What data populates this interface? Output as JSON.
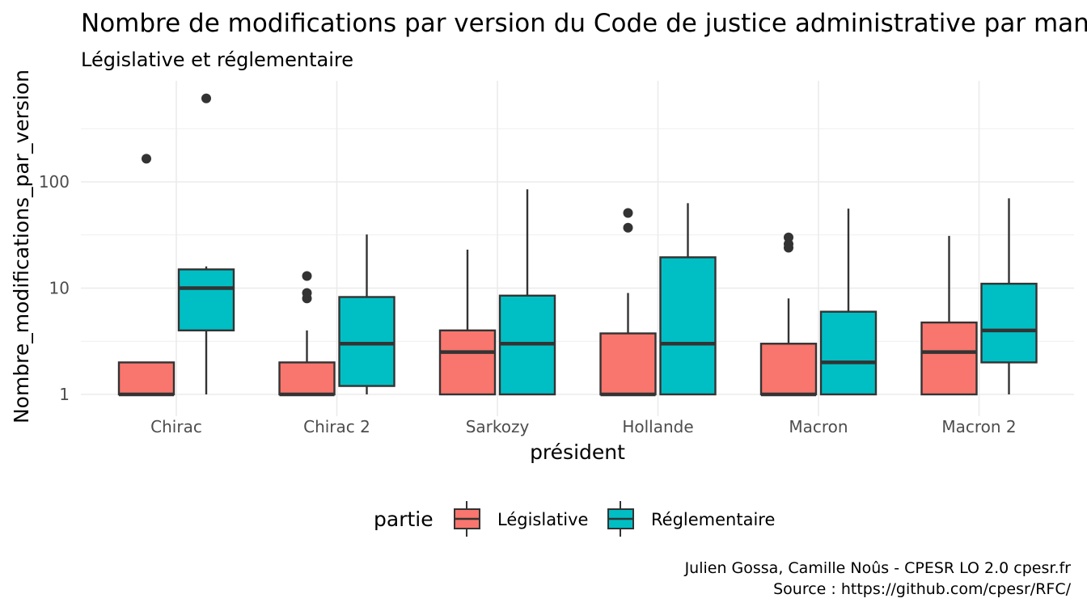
{
  "chart_data": {
    "type": "boxplot",
    "title": "Nombre de modifications par version du Code de justice administrative par mandat",
    "subtitle": "Législative et réglementaire",
    "xlabel": "président",
    "ylabel": "Nombre_modifications_par_version",
    "y_scale": "log10",
    "ylim": [
      0.87,
      800
    ],
    "y_ticks": [
      1,
      10,
      100
    ],
    "y_tick_labels": [
      "1",
      "10",
      "100"
    ],
    "grid": true,
    "legend": {
      "title": "partie",
      "position": "bottom",
      "entries": [
        {
          "label": "Législative",
          "color": "#F8766D"
        },
        {
          "label": "Réglementaire",
          "color": "#00BFC4"
        }
      ]
    },
    "categories": [
      "Chirac",
      "Chirac 2",
      "Sarkozy",
      "Hollande",
      "Macron",
      "Macron 2"
    ],
    "series": [
      {
        "name": "Législative",
        "color": "#F8766D",
        "boxes": [
          {
            "low": 1,
            "q1": 1,
            "median": 1,
            "q3": 2,
            "high": 2,
            "outliers": [
              165
            ]
          },
          {
            "low": 1,
            "q1": 1,
            "median": 1,
            "q3": 2,
            "high": 4,
            "outliers": [
              8,
              9,
              13
            ]
          },
          {
            "low": 1,
            "q1": 1,
            "median": 2.5,
            "q3": 4,
            "high": 23,
            "outliers": []
          },
          {
            "low": 1,
            "q1": 1,
            "median": 1,
            "q3": 3.75,
            "high": 9,
            "outliers": [
              37,
              51
            ]
          },
          {
            "low": 1,
            "q1": 1,
            "median": 1,
            "q3": 3,
            "high": 8,
            "outliers": [
              24,
              26,
              30
            ]
          },
          {
            "low": 1,
            "q1": 1,
            "median": 2.5,
            "q3": 4.75,
            "high": 31,
            "outliers": []
          }
        ]
      },
      {
        "name": "Réglementaire",
        "color": "#00BFC4",
        "boxes": [
          {
            "low": 1,
            "q1": 4,
            "median": 10,
            "q3": 15,
            "high": 16,
            "outliers": [
              610
            ]
          },
          {
            "low": 1,
            "q1": 1.2,
            "median": 3,
            "q3": 8.25,
            "high": 32,
            "outliers": []
          },
          {
            "low": 1,
            "q1": 1,
            "median": 3,
            "q3": 8.5,
            "high": 85,
            "outliers": []
          },
          {
            "low": 1,
            "q1": 1,
            "median": 3,
            "q3": 19.5,
            "high": 63,
            "outliers": []
          },
          {
            "low": 1,
            "q1": 1,
            "median": 2,
            "q3": 6,
            "high": 56,
            "outliers": []
          },
          {
            "low": 1,
            "q1": 2,
            "median": 4,
            "q3": 11,
            "high": 70,
            "outliers": []
          }
        ]
      }
    ],
    "caption": [
      "Julien Gossa, Camille Noûs - CPESR LO 2.0 cpesr.fr",
      "Source : https://github.com/cpesr/RFC/"
    ]
  }
}
